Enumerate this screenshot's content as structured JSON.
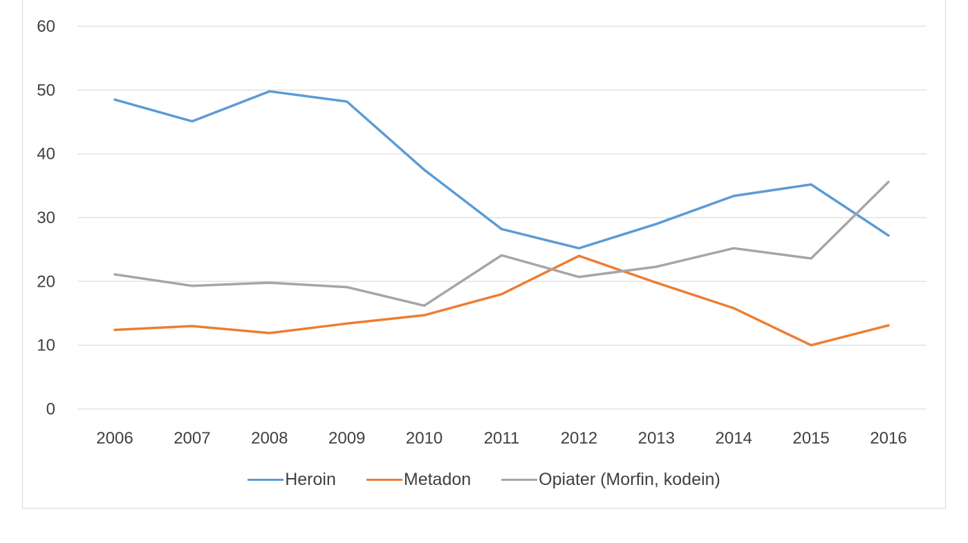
{
  "chart_data": {
    "type": "line",
    "categories": [
      "2006",
      "2007",
      "2008",
      "2009",
      "2010",
      "2011",
      "2012",
      "2013",
      "2014",
      "2015",
      "2016"
    ],
    "ylim": [
      0,
      60
    ],
    "yticks": [
      0,
      10,
      20,
      30,
      40,
      50,
      60
    ],
    "grid": true,
    "legend_position": "bottom",
    "series": [
      {
        "name": "Heroin",
        "color": "#5b9bd5",
        "values": [
          48.5,
          45.1,
          49.8,
          48.2,
          37.5,
          28.2,
          25.2,
          29.0,
          33.4,
          35.2,
          27.2
        ]
      },
      {
        "name": "Metadon",
        "color": "#ed7d31",
        "values": [
          12.4,
          13.0,
          11.9,
          13.4,
          14.7,
          18.0,
          24.0,
          19.8,
          15.8,
          10.0,
          13.1
        ]
      },
      {
        "name": "Opiater (Morfin, kodein)",
        "color": "#a5a5a5",
        "values": [
          21.1,
          19.3,
          19.8,
          19.1,
          16.2,
          24.1,
          20.7,
          22.3,
          25.2,
          23.6,
          35.6
        ]
      }
    ]
  }
}
